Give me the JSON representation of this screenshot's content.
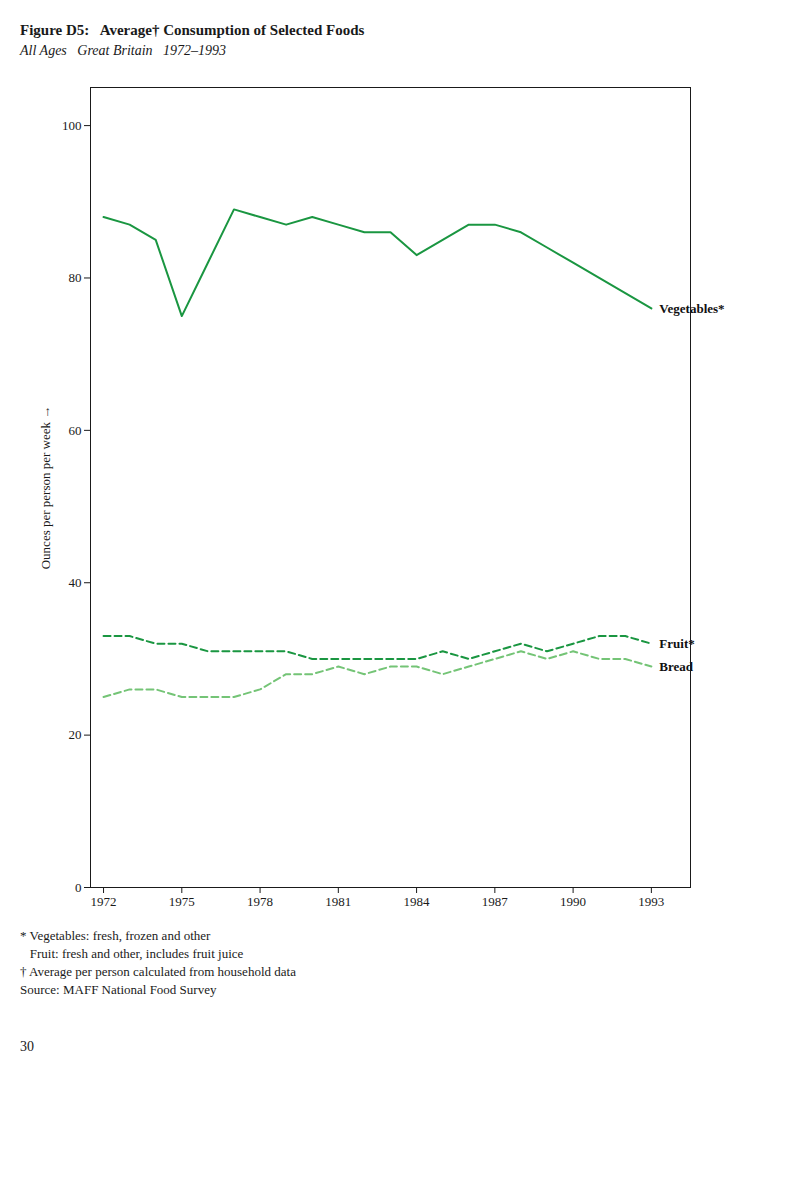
{
  "chart_data": {
    "type": "line",
    "title": "Figure D5:   Average† Consumption of Selected Foods",
    "subtitle": "All Ages   Great Britain   1972–1993",
    "ylabel": "Ounces per person per week",
    "x": [
      1972,
      1973,
      1974,
      1975,
      1976,
      1977,
      1978,
      1979,
      1980,
      1981,
      1982,
      1983,
      1984,
      1985,
      1986,
      1987,
      1988,
      1989,
      1990,
      1991,
      1992,
      1993
    ],
    "series": [
      {
        "name": "Vegetables*",
        "color": "#1a9641",
        "line_style": "solid",
        "values": [
          88,
          87,
          85,
          75,
          82,
          89,
          88,
          87,
          88,
          87,
          86,
          86,
          83,
          85,
          87,
          87,
          86,
          84,
          82,
          80,
          78,
          76
        ]
      },
      {
        "name": "Fruit*",
        "color": "#1a9641",
        "line_style": "dashed",
        "values": [
          33,
          33,
          32,
          32,
          31,
          31,
          31,
          31,
          30,
          30,
          30,
          30,
          30,
          31,
          30,
          31,
          32,
          31,
          32,
          33,
          33,
          32
        ]
      },
      {
        "name": "Bread",
        "color": "#74c476",
        "line_style": "dashed",
        "values": [
          25,
          26,
          26,
          25,
          25,
          25,
          26,
          28,
          28,
          29,
          28,
          29,
          29,
          28,
          29,
          30,
          31,
          30,
          31,
          30,
          30,
          29
        ]
      }
    ],
    "xlim": [
      1971.5,
      1994.5
    ],
    "xticks": [
      1972,
      1975,
      1978,
      1981,
      1984,
      1987,
      1990,
      1993
    ],
    "ylim": [
      0,
      105
    ],
    "yticks": [
      0,
      20,
      40,
      60,
      80,
      100
    ],
    "grid": false,
    "footnotes": [
      "* Vegetables: fresh, frozen and other",
      "   Fruit: fresh and other, includes fruit juice",
      "† Average per person calculated from household data",
      "Source: MAFF National Food Survey"
    ],
    "page_number": "30"
  }
}
